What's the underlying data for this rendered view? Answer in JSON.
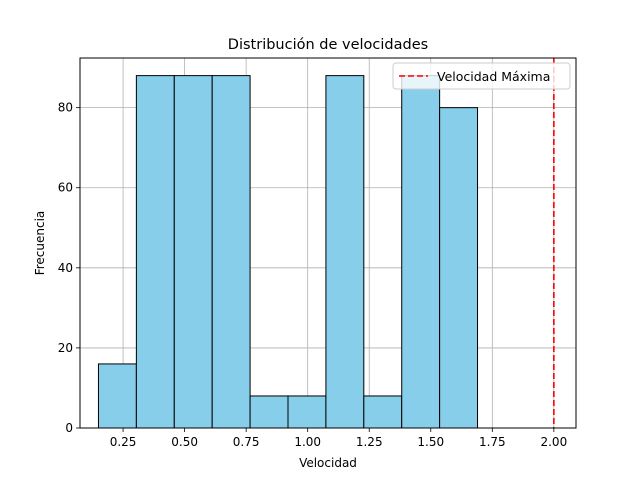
{
  "chart_data": {
    "type": "bar",
    "title": "Distribución de velocidades",
    "xlabel": "Velocidad",
    "ylabel": "Frecuencia",
    "bin_edges": [
      0.15,
      0.304,
      0.458,
      0.612,
      0.766,
      0.92,
      1.074,
      1.228,
      1.382,
      1.536,
      1.69
    ],
    "values": [
      16,
      88,
      88,
      88,
      8,
      8,
      88,
      8,
      88,
      80
    ],
    "xlim": [
      0.075,
      2.09
    ],
    "ylim": [
      0,
      92.4
    ],
    "xticks": [
      0.25,
      0.5,
      0.75,
      1.0,
      1.25,
      1.5,
      1.75,
      2.0
    ],
    "xtick_labels": [
      "0.25",
      "0.50",
      "0.75",
      "1.00",
      "1.25",
      "1.50",
      "1.75",
      "2.00"
    ],
    "yticks": [
      0,
      20,
      40,
      60,
      80
    ],
    "ytick_labels": [
      "0",
      "20",
      "40",
      "60",
      "80"
    ],
    "grid": true,
    "bar_color": "#87ceeb",
    "bar_edge_color": "#000000",
    "reference_line": {
      "x": 2.0,
      "label": "Velocidad Máxima",
      "color": "#ff0000",
      "style": "dashed"
    },
    "legend_position": "top-right"
  }
}
